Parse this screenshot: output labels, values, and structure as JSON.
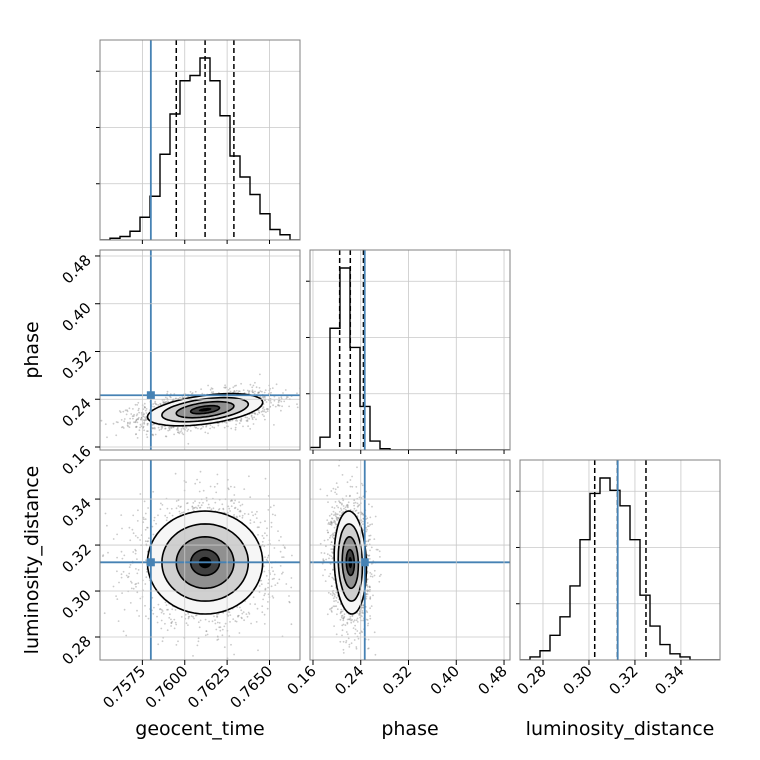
{
  "chart_data": {
    "type": "corner",
    "parameters": [
      "geocent_time",
      "phase",
      "luminosity_distance"
    ],
    "truth": {
      "geocent_time": 0.758,
      "phase": 0.2467,
      "luminosity_distance": 0.3125
    },
    "truth_color": "#4682b4",
    "contour_levels": [
      "0.118",
      "0.393",
      "0.675",
      "0.864"
    ],
    "ranges": {
      "geocent_time": [
        0.755,
        0.7668
      ],
      "phase": [
        0.155,
        0.49
      ],
      "luminosity_distance": [
        0.27,
        0.357
      ]
    },
    "ticks": {
      "geocent_time": {
        "values": [
          0.7575,
          0.76,
          0.7625,
          0.765
        ],
        "labels": [
          "0.7575",
          "0.7600",
          "0.7625",
          "0.7650"
        ]
      },
      "phase": {
        "values": [
          0.16,
          0.24,
          0.32,
          0.4,
          0.48
        ],
        "labels": [
          "0.16",
          "0.24",
          "0.32",
          "0.40",
          "0.48"
        ]
      },
      "luminosity_distance": {
        "values": [
          0.28,
          0.3,
          0.32,
          0.34
        ],
        "labels": [
          "0.28",
          "0.30",
          "0.32",
          "0.34"
        ]
      }
    },
    "marginals": {
      "geocent_time": {
        "edges": [
          0.755,
          0.75559,
          0.75618,
          0.75677,
          0.75736,
          0.75795,
          0.75854,
          0.75913,
          0.75972,
          0.76031,
          0.7609,
          0.76149,
          0.76208,
          0.76267,
          0.76326,
          0.76385,
          0.76444,
          0.76503,
          0.76562,
          0.76621,
          0.7668
        ],
        "counts": [
          0,
          1,
          2,
          5,
          13,
          25,
          49,
          72,
          91,
          94,
          104,
          91,
          71,
          48,
          36,
          26,
          15,
          6,
          3,
          0
        ],
        "quantiles": [
          0.7595,
          0.7612,
          0.7629
        ]
      },
      "phase": {
        "edges": [
          0.155,
          0.17175,
          0.1885,
          0.20525,
          0.222,
          0.23875,
          0.2555,
          0.27225,
          0.289,
          0.30575,
          0.3225,
          0.33925,
          0.356,
          0.37275,
          0.3895,
          0.40625,
          0.423,
          0.43975,
          0.4565,
          0.47325,
          0.49
        ],
        "counts": [
          2,
          10,
          95,
          142,
          80,
          34,
          7,
          1,
          0,
          0,
          0,
          0,
          0,
          0,
          0,
          0,
          0,
          0,
          0,
          0
        ],
        "quantiles": [
          0.2047,
          0.2225,
          0.2445
        ]
      },
      "luminosity_distance": {
        "edges": [
          0.27,
          0.27435,
          0.2787,
          0.28305,
          0.2874,
          0.29175,
          0.2961,
          0.30045,
          0.3048,
          0.30915,
          0.3135,
          0.31785,
          0.3222,
          0.32655,
          0.3309,
          0.33525,
          0.3396,
          0.34395,
          0.3483,
          0.35265,
          0.357
        ],
        "counts": [
          0,
          1,
          3,
          8,
          14,
          24,
          39,
          54,
          59,
          55,
          50,
          39,
          21,
          11,
          5,
          2,
          1,
          0,
          0,
          0
        ],
        "quantiles": [
          0.3025,
          0.3124,
          0.3248
        ]
      }
    },
    "densities": {
      "phase_vs_geocent_time": {
        "mean": [
          0.7612,
          0.2225
        ],
        "sd": [
          0.0017,
          0.0135
        ],
        "rho": 0.45
      },
      "luminosity_distance_vs_geocent_time": {
        "mean": [
          0.7612,
          0.3124
        ],
        "sd": [
          0.0017,
          0.0112
        ],
        "rho": 0.0
      },
      "luminosity_distance_vs_phase": {
        "mean": [
          0.2225,
          0.3124
        ],
        "sd": [
          0.0135,
          0.0112
        ],
        "rho": -0.1
      }
    },
    "grid": true
  }
}
